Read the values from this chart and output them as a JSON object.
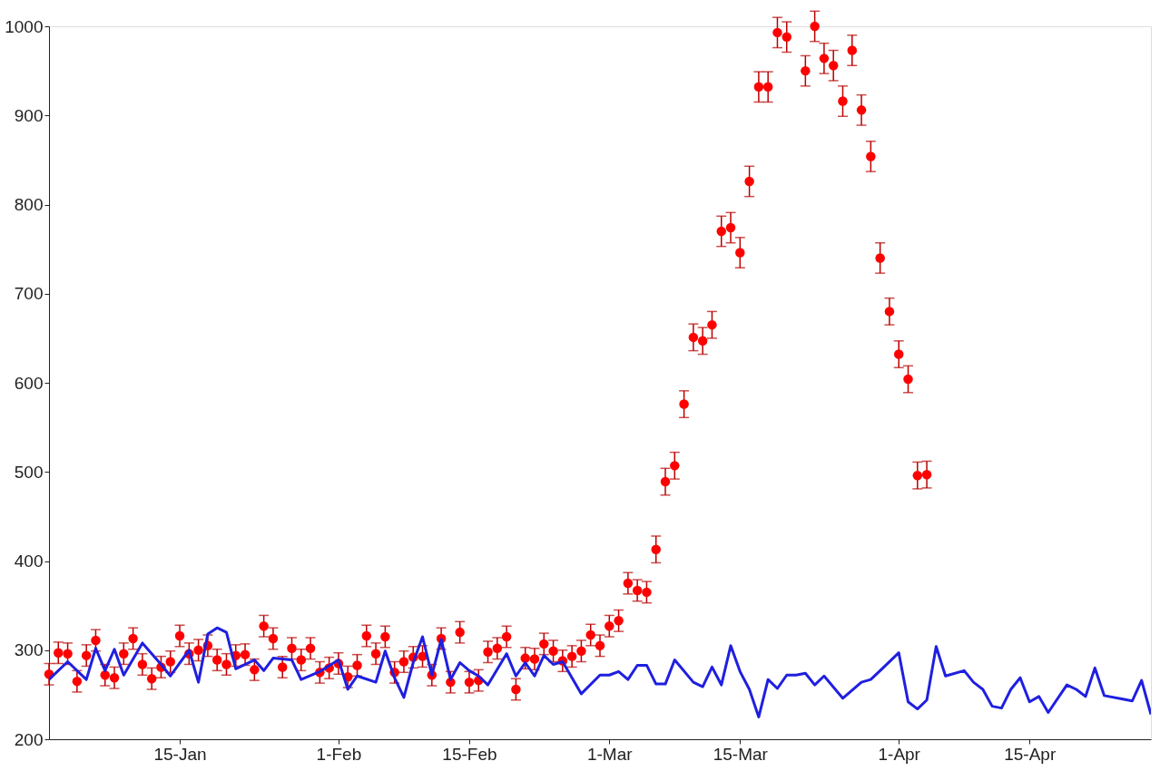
{
  "chart_data": {
    "type": "scatter",
    "x": [
      "--01-01",
      "--01-02",
      "--01-03",
      "--01-04",
      "--01-05",
      "--01-06",
      "--01-07",
      "--01-08",
      "--01-09",
      "--01-10",
      "--01-11",
      "--01-12",
      "--01-13",
      "--01-14",
      "--01-15",
      "--01-16",
      "--01-17",
      "--01-18",
      "--01-19",
      "--01-20",
      "--01-21",
      "--01-22",
      "--01-23",
      "--01-24",
      "--01-25",
      "--01-26",
      "--01-27",
      "--01-28",
      "--01-29",
      "--01-30",
      "--01-31",
      "--02-01",
      "--02-02",
      "--02-03",
      "--02-04",
      "--02-05",
      "--02-06",
      "--02-07",
      "--02-08",
      "--02-09",
      "--02-10",
      "--02-11",
      "--02-12",
      "--02-13",
      "--02-14",
      "--02-15",
      "--02-16",
      "--02-17",
      "--02-18",
      "--02-19",
      "--02-20",
      "--02-21",
      "--02-22",
      "--02-23",
      "--02-24",
      "--02-25",
      "--02-26",
      "--02-27",
      "--02-28",
      "--02-29",
      "--03-01",
      "--03-02",
      "--03-03",
      "--03-04",
      "--03-05",
      "--03-06",
      "--03-07",
      "--03-08",
      "--03-09",
      "--03-10",
      "--03-11",
      "--03-12",
      "--03-13",
      "--03-14",
      "--03-15",
      "--03-16",
      "--03-17",
      "--03-18",
      "--03-19",
      "--03-20",
      "--03-21",
      "--03-22",
      "--03-23",
      "--03-24",
      "--03-25",
      "--03-26",
      "--03-27",
      "--03-28",
      "--03-29",
      "--03-30",
      "--03-31",
      "--04-01",
      "--04-02",
      "--04-03",
      "--04-04"
    ],
    "series": [
      {
        "color": "#ff0000",
        "marker": "circle",
        "values": [
          273,
          297,
          296,
          265,
          294,
          311,
          272,
          269,
          296,
          313,
          284,
          268,
          281,
          287,
          316,
          296,
          300,
          305,
          289,
          284,
          294,
          295,
          278,
          327,
          313,
          281,
          302,
          289,
          302,
          275,
          280,
          285,
          270,
          283,
          316,
          296,
          315,
          275,
          287,
          292,
          293,
          272,
          313,
          264,
          320,
          264,
          266,
          298,
          302,
          315,
          256,
          291,
          290,
          307,
          299,
          288,
          293,
          299,
          317,
          305,
          327,
          333,
          375,
          367,
          365,
          413,
          489,
          507,
          576,
          651,
          647,
          665,
          770,
          774,
          746,
          826,
          932,
          932,
          993,
          988,
          null,
          950,
          1000,
          964,
          956,
          916,
          973,
          906,
          854,
          740,
          680,
          632,
          604,
          496,
          497
        ],
        "errors": [
          12,
          12,
          12,
          12,
          12,
          12,
          12,
          12,
          12,
          12,
          12,
          12,
          12,
          12,
          12,
          12,
          12,
          12,
          12,
          12,
          12,
          12,
          12,
          12,
          12,
          12,
          12,
          12,
          12,
          12,
          12,
          12,
          12,
          12,
          12,
          12,
          12,
          12,
          12,
          12,
          12,
          12,
          12,
          12,
          12,
          12,
          12,
          12,
          12,
          12,
          12,
          12,
          12,
          12,
          12,
          12,
          12,
          12,
          12,
          12,
          12,
          12,
          12,
          12,
          12,
          15,
          15,
          15,
          15,
          15,
          15,
          15,
          17,
          17,
          17,
          17,
          17,
          17,
          17,
          17,
          null,
          17,
          17,
          17,
          17,
          17,
          17,
          17,
          17,
          17,
          15,
          15,
          15,
          15,
          15
        ]
      },
      {
        "type": "line",
        "color": "#1f1fe0",
        "marker": "none",
        "line_style": "solid",
        "x": [
          "--01-01",
          "--01-03",
          "--01-05",
          "--01-06",
          "--01-07",
          "--01-08",
          "--01-09",
          "--01-11",
          "--01-13",
          "--01-14",
          "--01-16",
          "--01-17",
          "--01-18",
          "--01-19",
          "--01-20",
          "--01-21",
          "--01-23",
          "--01-24",
          "--01-25",
          "--01-27",
          "--01-28",
          "--01-30",
          "--02-01",
          "--02-02",
          "--02-03",
          "--02-05",
          "--02-06",
          "--02-07",
          "--02-08",
          "--02-09",
          "--02-10",
          "--02-11",
          "--02-12",
          "--02-13",
          "--02-14",
          "--02-15",
          "--02-16",
          "--02-17",
          "--02-19",
          "--02-20",
          "--02-21",
          "--02-22",
          "--02-23",
          "--02-24",
          "--02-25",
          "--02-27",
          "--02-29",
          "--03-01",
          "--03-02",
          "--03-03",
          "--03-04",
          "--03-05",
          "--03-06",
          "--03-07",
          "--03-08",
          "--03-10",
          "--03-11",
          "--03-12",
          "--03-13",
          "--03-14",
          "--03-15",
          "--03-16",
          "--03-17",
          "--03-18",
          "--03-19",
          "--03-20",
          "--03-21",
          "--03-22",
          "--03-23",
          "--03-24",
          "--03-26",
          "--03-28",
          "--03-29",
          "--03-30",
          "--04-01",
          "--04-02",
          "--04-03",
          "--04-04",
          "--04-05",
          "--04-06",
          "--04-08",
          "--04-09",
          "--04-10",
          "--04-11",
          "--04-12",
          "--04-13",
          "--04-14",
          "--04-15",
          "--04-16",
          "--04-17",
          "--04-19",
          "--04-20",
          "--04-21",
          "--04-22",
          "--04-23",
          "--04-25",
          "--04-26",
          "--04-27",
          "--04-28"
        ],
        "values": [
          267,
          287,
          267,
          302,
          277,
          301,
          272,
          308,
          284,
          271,
          300,
          264,
          318,
          325,
          320,
          279,
          289,
          277,
          291,
          289,
          267,
          276,
          289,
          256,
          271,
          264,
          299,
          269,
          247,
          286,
          315,
          272,
          312,
          267,
          286,
          277,
          271,
          261,
          296,
          271,
          286,
          271,
          294,
          284,
          287,
          251,
          272,
          272,
          276,
          267,
          283,
          283,
          262,
          262,
          289,
          264,
          259,
          281,
          261,
          305,
          276,
          256,
          225,
          267,
          257,
          272,
          272,
          274,
          261,
          271,
          246,
          264,
          267,
          277,
          297,
          242,
          234,
          244,
          304,
          271,
          277,
          264,
          256,
          237,
          235,
          256,
          269,
          242,
          248,
          230,
          261,
          256,
          248,
          280,
          249,
          245,
          243,
          266,
          228
        ]
      }
    ],
    "xlim": [
      "--01-01",
      "--04-28"
    ],
    "xticks": [
      {
        "value": "--01-15",
        "label": "15-Jan"
      },
      {
        "value": "--02-01",
        "label": "1-Feb"
      },
      {
        "value": "--02-15",
        "label": "15-Feb"
      },
      {
        "value": "--03-01",
        "label": "1-Mar"
      },
      {
        "value": "--03-15",
        "label": "15-Mar"
      },
      {
        "value": "--04-01",
        "label": "1-Apr"
      },
      {
        "value": "--04-15",
        "label": "15-Apr"
      }
    ],
    "ylim": [
      200,
      1000
    ],
    "yticks": [
      200,
      300,
      400,
      500,
      600,
      700,
      800,
      900,
      1000
    ],
    "grid": false
  }
}
